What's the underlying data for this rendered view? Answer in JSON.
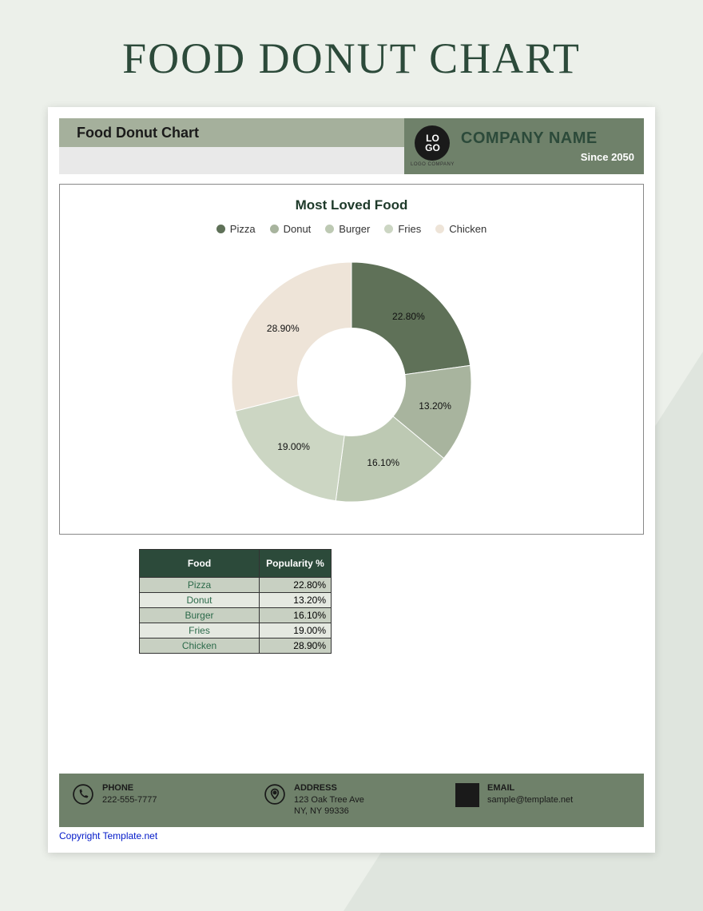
{
  "page_title": "FOOD DONUT CHART",
  "header": {
    "title": "Food Donut Chart",
    "logo_line1": "LO",
    "logo_line2": "GO",
    "logo_sub": "LOGO COMPANY",
    "company_name": "COMPANY NAME",
    "since": "Since 2050"
  },
  "chart": {
    "type": "donut",
    "title": "Most Loved Food",
    "inner_radius_ratio": 0.45,
    "outer_radius_ratio": 1.0,
    "background_color": "#ffffff",
    "slices": [
      {
        "label": "Pizza",
        "value": 22.8,
        "display": "22.80%",
        "color": "#5f7158"
      },
      {
        "label": "Donut",
        "value": 13.2,
        "display": "13.20%",
        "color": "#a8b49e"
      },
      {
        "label": "Burger",
        "value": 16.1,
        "display": "16.10%",
        "color": "#bdc9b3"
      },
      {
        "label": "Fries",
        "value": 19.0,
        "display": "19.00%",
        "color": "#ccd6c3"
      },
      {
        "label": "Chicken",
        "value": 28.9,
        "display": "28.90%",
        "color": "#eee4d8"
      }
    ],
    "label_fontsize": 12,
    "title_fontsize": 17
  },
  "table": {
    "columns": [
      "Food",
      "Popularity %"
    ],
    "rows": [
      [
        "Pizza",
        "22.80%"
      ],
      [
        "Donut",
        "13.20%"
      ],
      [
        "Burger",
        "16.10%"
      ],
      [
        "Fries",
        "19.00%"
      ],
      [
        "Chicken",
        "28.90%"
      ]
    ],
    "header_bg": "#2c4a3a",
    "row_odd_bg": "#c8d0c2",
    "row_even_bg": "#e5e9e1"
  },
  "footer": {
    "phone_label": "PHONE",
    "phone_value": "222-555-7777",
    "address_label": "ADDRESS",
    "address_line1": "123 Oak Tree Ave",
    "address_line2": "NY, NY 99336",
    "email_label": "EMAIL",
    "email_value": "sample@template.net"
  },
  "copyright": "Copyright Template.net",
  "colors": {
    "page_bg": "#ecf0ea",
    "accent_dark": "#2c4a3a",
    "bar_olive": "#6f816a",
    "bar_sage": "#a5b09c"
  }
}
